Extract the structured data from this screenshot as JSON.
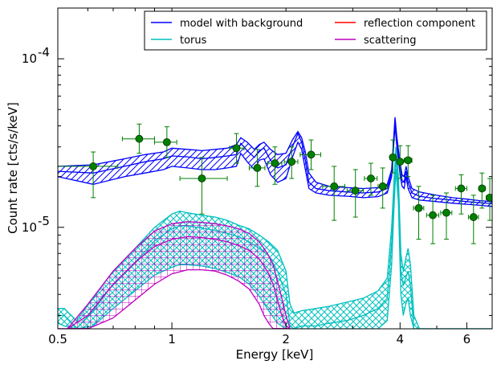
{
  "chart_data": {
    "type": "line",
    "title": "",
    "xlabel": "Energy [keV]",
    "ylabel": "Count rate [cts/s/keV]",
    "xscale": "log",
    "yscale": "log",
    "xlim": [
      0.5,
      7.0
    ],
    "ylim": [
      2.5e-06,
      0.0002
    ],
    "grid": false,
    "legend_position": "top-right",
    "x_ticks": [
      {
        "value": 0.5,
        "label": "0.5"
      },
      {
        "value": 1,
        "label": "1"
      },
      {
        "value": 2,
        "label": "2"
      },
      {
        "value": 4,
        "label": "4"
      },
      {
        "value": 6,
        "label": "6"
      }
    ],
    "y_ticks": [
      {
        "value": 1e-05,
        "base": "10",
        "exp": "-5"
      },
      {
        "value": 0.0001,
        "base": "10",
        "exp": "-4"
      }
    ],
    "legend": [
      {
        "label": "model with background",
        "color": "#0000ff"
      },
      {
        "label": "reflection component",
        "color": "#ff0000"
      },
      {
        "label": "torus",
        "color": "#00bfbf"
      },
      {
        "label": "scattering",
        "color": "#bf00bf"
      }
    ],
    "data_points": {
      "name": "",
      "color": "#008000",
      "points": [
        {
          "x": 0.62,
          "y": 2.3e-05,
          "xerr": [
            0.5,
            0.72
          ],
          "yerr": [
            1.5e-05,
            2.8e-05
          ]
        },
        {
          "x": 0.82,
          "y": 3.35e-05,
          "xerr": [
            0.74,
            0.9
          ],
          "yerr": [
            2.75e-05,
            4.1e-05
          ]
        },
        {
          "x": 0.97,
          "y": 3.2e-05,
          "xerr": [
            0.9,
            1.03
          ],
          "yerr": [
            2.6e-05,
            3.95e-05
          ]
        },
        {
          "x": 1.2,
          "y": 1.95e-05,
          "xerr": [
            1.05,
            1.4
          ],
          "yerr": [
            1.2e-05,
            2.6e-05
          ]
        },
        {
          "x": 1.48,
          "y": 2.95e-05,
          "xerr": [
            1.42,
            1.55
          ],
          "yerr": [
            2.4e-05,
            3.6e-05
          ]
        },
        {
          "x": 1.68,
          "y": 2.25e-05,
          "xerr": [
            1.6,
            1.76
          ],
          "yerr": [
            1.75e-05,
            2.9e-05
          ]
        },
        {
          "x": 1.87,
          "y": 2.4e-05,
          "xerr": [
            1.79,
            1.95
          ],
          "yerr": [
            1.8e-05,
            3e-05
          ]
        },
        {
          "x": 2.07,
          "y": 2.45e-05,
          "xerr": [
            1.98,
            2.15
          ],
          "yerr": [
            1.95e-05,
            3e-05
          ]
        },
        {
          "x": 2.33,
          "y": 2.7e-05,
          "xerr": [
            2.18,
            2.47
          ],
          "yerr": [
            2.2e-05,
            3.3e-05
          ]
        },
        {
          "x": 2.68,
          "y": 1.75e-05,
          "xerr": [
            2.5,
            2.86
          ],
          "yerr": [
            1.1e-05,
            2.3e-05
          ]
        },
        {
          "x": 3.05,
          "y": 1.65e-05,
          "xerr": [
            2.9,
            3.2
          ],
          "yerr": [
            1.15e-05,
            2.2e-05
          ]
        },
        {
          "x": 3.35,
          "y": 1.95e-05,
          "xerr": [
            3.22,
            3.48
          ],
          "yerr": [
            1.55e-05,
            2.4e-05
          ]
        },
        {
          "x": 3.6,
          "y": 1.75e-05,
          "xerr": [
            3.5,
            3.7
          ],
          "yerr": [
            1.3e-05,
            2.25e-05
          ]
        },
        {
          "x": 3.83,
          "y": 2.6e-05,
          "xerr": [
            3.76,
            3.9
          ],
          "yerr": [
            2.1e-05,
            3.3e-05
          ]
        },
        {
          "x": 4.0,
          "y": 2.45e-05,
          "xerr": [
            3.93,
            4.07
          ],
          "yerr": [
            1.95e-05,
            3.05e-05
          ]
        },
        {
          "x": 4.2,
          "y": 2.5e-05,
          "xerr": [
            4.1,
            4.3
          ],
          "yerr": [
            2e-05,
            3.05e-05
          ]
        },
        {
          "x": 4.48,
          "y": 1.3e-05,
          "xerr": [
            4.34,
            4.62
          ],
          "yerr": [
            8.5e-06,
            1.75e-05
          ]
        },
        {
          "x": 4.88,
          "y": 1.18e-05,
          "xerr": [
            4.7,
            5.06
          ],
          "yerr": [
            8e-06,
            1.55e-05
          ]
        },
        {
          "x": 5.3,
          "y": 1.22e-05,
          "xerr": [
            5.12,
            5.48
          ],
          "yerr": [
            8.5e-06,
            1.6e-05
          ]
        },
        {
          "x": 5.8,
          "y": 1.7e-05,
          "xerr": [
            5.6,
            6.0
          ],
          "yerr": [
            1.2e-05,
            2.05e-05
          ]
        },
        {
          "x": 6.25,
          "y": 1.15e-05,
          "xerr": [
            6.06,
            6.44
          ],
          "yerr": [
            8e-06,
            1.55e-05
          ]
        },
        {
          "x": 6.58,
          "y": 1.7e-05,
          "xerr": [
            6.46,
            6.72
          ],
          "yerr": [
            1.3e-05,
            2.1e-05
          ]
        },
        {
          "x": 6.9,
          "y": 1.5e-05,
          "xerr": [
            6.75,
            7.0
          ],
          "yerr": [
            1.1e-05,
            1.95e-05
          ]
        }
      ]
    },
    "series": [
      {
        "name": "model with background",
        "color": "#0000ff",
        "x": [
          0.5,
          0.62,
          0.75,
          0.85,
          0.95,
          1.0,
          1.1,
          1.2,
          1.3,
          1.4,
          1.48,
          1.52,
          1.58,
          1.65,
          1.7,
          1.75,
          1.82,
          1.9,
          2.0,
          2.08,
          2.15,
          2.2,
          2.25,
          2.3,
          2.4,
          2.6,
          2.9,
          3.2,
          3.5,
          3.7,
          3.8,
          3.85,
          3.88,
          3.92,
          4.0,
          4.05,
          4.1,
          4.15,
          4.2,
          4.3,
          4.5,
          5.0,
          5.5,
          6.0,
          6.5,
          7.0
        ],
        "upper": [
          2.3e-05,
          2.35e-05,
          2.55e-05,
          2.7e-05,
          2.8e-05,
          2.95e-05,
          2.9e-05,
          2.85e-05,
          2.9e-05,
          2.95e-05,
          3.1e-05,
          3.4e-05,
          3.2e-05,
          2.9e-05,
          3.1e-05,
          3.2e-05,
          2.9e-05,
          2.7e-05,
          2.75e-05,
          3.3e-05,
          3.7e-05,
          3.4e-05,
          2.8e-05,
          2.1e-05,
          1.85e-05,
          1.75e-05,
          1.72e-05,
          1.7e-05,
          1.72e-05,
          1.8e-05,
          2.2e-05,
          3.4e-05,
          4.5e-05,
          3.5e-05,
          2.4e-05,
          2.05e-05,
          2e-05,
          2.3e-05,
          2e-05,
          1.7e-05,
          1.62e-05,
          1.55e-05,
          1.5e-05,
          1.47e-05,
          1.44e-05,
          1.42e-05
        ],
        "mid": [
          2.15e-05,
          2.1e-05,
          2.3e-05,
          2.45e-05,
          2.55e-05,
          2.65e-05,
          2.62e-05,
          2.55e-05,
          2.6e-05,
          2.65e-05,
          2.7e-05,
          3.15e-05,
          2.85e-05,
          2.6e-05,
          2.85e-05,
          2.95e-05,
          2.5e-05,
          2.25e-05,
          2.35e-05,
          3e-05,
          3.6e-05,
          3.2e-05,
          2.5e-05,
          1.85e-05,
          1.7e-05,
          1.65e-05,
          1.62e-05,
          1.6e-05,
          1.62e-05,
          1.7e-05,
          2.1e-05,
          3.3e-05,
          4.3e-05,
          3.3e-05,
          2.2e-05,
          1.9e-05,
          1.85e-05,
          2.15e-05,
          1.85e-05,
          1.6e-05,
          1.53e-05,
          1.48e-05,
          1.45e-05,
          1.42e-05,
          1.4e-05,
          1.38e-05
        ],
        "lower": [
          2e-05,
          1.8e-05,
          2e-05,
          2.1e-05,
          2.2e-05,
          2.3e-05,
          2.25e-05,
          2.2e-05,
          2.2e-05,
          2.25e-05,
          2.3e-05,
          2.75e-05,
          2.45e-05,
          2.2e-05,
          2.5e-05,
          2.55e-05,
          2.05e-05,
          1.85e-05,
          1.95e-05,
          2.6e-05,
          3.2e-05,
          2.9e-05,
          2.2e-05,
          1.7e-05,
          1.6e-05,
          1.55e-05,
          1.53e-05,
          1.5e-05,
          1.52e-05,
          1.6e-05,
          2e-05,
          3.1e-05,
          4e-05,
          3.1e-05,
          2.05e-05,
          1.75e-05,
          1.7e-05,
          2e-05,
          1.7e-05,
          1.5e-05,
          1.45e-05,
          1.42e-05,
          1.39e-05,
          1.37e-05,
          1.35e-05,
          1.33e-05
        ]
      },
      {
        "name": "torus",
        "color": "#00bfbf",
        "x": [
          0.5,
          0.52,
          0.56,
          0.62,
          0.7,
          0.8,
          0.9,
          1.0,
          1.05,
          1.1,
          1.2,
          1.3,
          1.4,
          1.5,
          1.6,
          1.7,
          1.8,
          1.9,
          2.0,
          2.05,
          2.1,
          2.2,
          2.4,
          2.6,
          2.9,
          3.2,
          3.5,
          3.7,
          3.8,
          3.86,
          3.9,
          3.96,
          4.02,
          4.08,
          4.14,
          4.2,
          4.26,
          4.35,
          4.5,
          4.7,
          5.0,
          5.5,
          6.0,
          6.5,
          7.0
        ],
        "upper": [
          3.3e-06,
          3.3e-06,
          2.8e-06,
          3.8e-06,
          5.5e-06,
          7.5e-06,
          1e-05,
          1.2e-05,
          1.25e-05,
          1.22e-05,
          1.18e-05,
          1.15e-05,
          1.1e-05,
          1.03e-05,
          9.8e-06,
          9e-06,
          8.2e-06,
          7.3e-06,
          5.5e-06,
          3.5e-06,
          3.1e-06,
          3.2e-06,
          3.3e-06,
          3.4e-06,
          3.6e-06,
          3.8e-06,
          4.2e-06,
          5e-06,
          1e-05,
          2e-05,
          3e-05,
          2e-05,
          7e-06,
          5.5e-06,
          6.5e-06,
          7.5e-06,
          6e-06,
          3e-06,
          2.5e-06,
          2.5e-06,
          2.5e-06,
          2.5e-06,
          2.5e-06,
          2.5e-06,
          2.5e-06
        ],
        "mid": [
          3e-06,
          3e-06,
          2.5e-06,
          3.2e-06,
          4.6e-06,
          6.2e-06,
          8.3e-06,
          9.8e-06,
          1.02e-05,
          1.02e-05,
          9.9e-06,
          9.6e-06,
          9.2e-06,
          8.8e-06,
          8.2e-06,
          7.5e-06,
          6.8e-06,
          5.5e-06,
          4e-06,
          2.6e-06,
          2.5e-06,
          2.6e-06,
          2.6e-06,
          2.7e-06,
          2.8e-06,
          3e-06,
          3.3e-06,
          3.8e-06,
          8e-06,
          1.7e-05,
          2.6e-05,
          1.7e-05,
          5.5e-06,
          4.5e-06,
          5e-06,
          5.5e-06,
          4.5e-06,
          2.5e-06,
          2.5e-06,
          2.5e-06,
          2.5e-06,
          2.5e-06,
          2.5e-06,
          2.5e-06,
          2.5e-06
        ],
        "lower": [
          2.7e-06,
          2.6e-06,
          2.5e-06,
          2.6e-06,
          3.3e-06,
          4.2e-06,
          5.2e-06,
          5.8e-06,
          6e-06,
          6e-06,
          5.9e-06,
          5.7e-06,
          5.4e-06,
          5.1e-06,
          4.6e-06,
          3.9e-06,
          3.2e-06,
          2.7e-06,
          2.5e-06,
          2.5e-06,
          2.5e-06,
          2.5e-06,
          2.5e-06,
          2.5e-06,
          2.5e-06,
          2.5e-06,
          2.5e-06,
          2.8e-06,
          6e-06,
          1.4e-05,
          2.2e-05,
          1.4e-05,
          4e-06,
          3e-06,
          3.5e-06,
          3.8e-06,
          3e-06,
          2.5e-06,
          2.5e-06,
          2.5e-06,
          2.5e-06,
          2.5e-06,
          2.5e-06,
          2.5e-06,
          2.5e-06
        ]
      },
      {
        "name": "scattering",
        "color": "#bf00bf",
        "x": [
          0.5,
          0.53,
          0.6,
          0.7,
          0.8,
          0.9,
          1.0,
          1.1,
          1.2,
          1.3,
          1.4,
          1.5,
          1.6,
          1.7,
          1.75,
          1.8,
          1.85,
          1.9,
          1.95,
          2.0,
          2.05
        ],
        "upper": [
          2.5e-06,
          2.5e-06,
          3.5e-06,
          5.5e-06,
          7.5e-06,
          9.5e-06,
          1.05e-05,
          1.08e-05,
          1.07e-05,
          1.05e-05,
          1.02e-05,
          9.8e-06,
          9.2e-06,
          8.2e-06,
          7.5e-06,
          6.8e-06,
          6e-06,
          4.8e-06,
          3.8e-06,
          3e-06,
          2.5e-06
        ],
        "mid": [
          2.5e-06,
          2.5e-06,
          3e-06,
          4.6e-06,
          6.2e-06,
          7.7e-06,
          8.5e-06,
          8.8e-06,
          8.7e-06,
          8.5e-06,
          8.2e-06,
          7.8e-06,
          7.3e-06,
          6.5e-06,
          5.9e-06,
          5.3e-06,
          4.6e-06,
          3.7e-06,
          3e-06,
          2.6e-06,
          2.5e-06
        ],
        "lower": [
          2.5e-06,
          2.5e-06,
          2.5e-06,
          2.9e-06,
          3.7e-06,
          4.6e-06,
          5.3e-06,
          5.6e-06,
          5.6e-06,
          5.5e-06,
          5.2e-06,
          4.8e-06,
          4.3e-06,
          3.5e-06,
          3e-06,
          2.7e-06,
          2.5e-06,
          2.5e-06,
          2.5e-06,
          2.5e-06,
          2.5e-06
        ]
      }
    ]
  }
}
